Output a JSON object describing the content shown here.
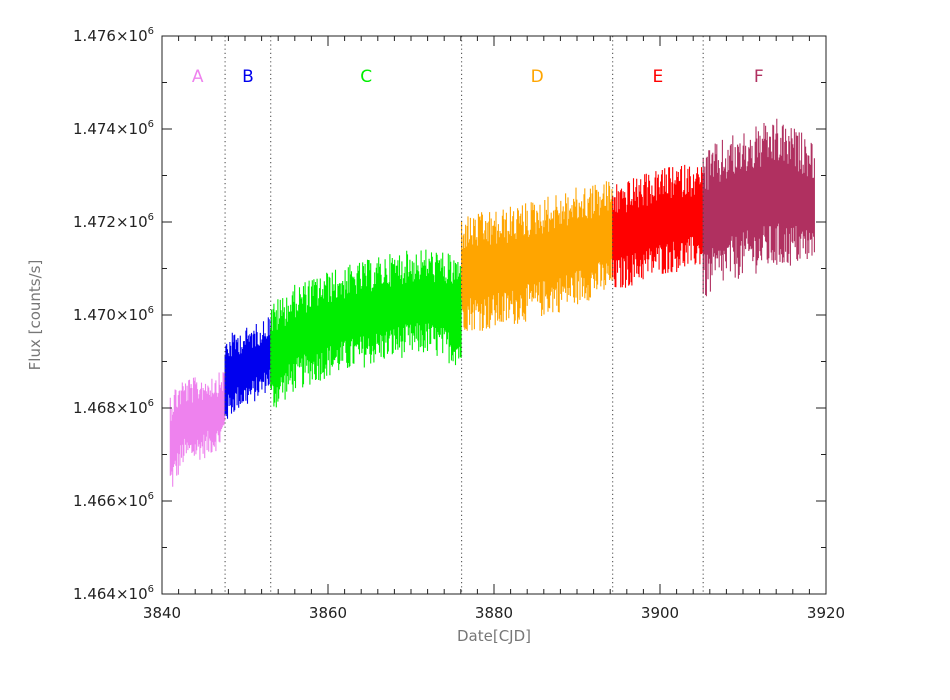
{
  "chart_data": {
    "type": "area",
    "title": "",
    "xlabel": "Date[CJD]",
    "ylabel": "Flux [counts/s]",
    "xlim": [
      3840,
      3920
    ],
    "ylim": [
      1464000,
      1476000
    ],
    "x_ticks": [
      3840,
      3860,
      3880,
      3900,
      3920
    ],
    "x_tick_labels": [
      "3840",
      "3860",
      "3880",
      "3900",
      "3920"
    ],
    "y_ticks": [
      1464000,
      1466000,
      1468000,
      1470000,
      1472000,
      1474000,
      1476000
    ],
    "y_tick_labels": [
      {
        "mantissa": "1.464×10",
        "exponent": "6"
      },
      {
        "mantissa": "1.466×10",
        "exponent": "6"
      },
      {
        "mantissa": "1.468×10",
        "exponent": "6"
      },
      {
        "mantissa": "1.470×10",
        "exponent": "6"
      },
      {
        "mantissa": "1.472×10",
        "exponent": "6"
      },
      {
        "mantissa": "1.474×10",
        "exponent": "6"
      },
      {
        "mantissa": "1.476×10",
        "exponent": "6"
      }
    ],
    "grid": false,
    "legend": "none",
    "dividers": [
      3847.6,
      3853.1,
      3876.1,
      3894.3,
      3905.2
    ],
    "series": [
      {
        "name": "A",
        "color": "#ee82ee",
        "x": [
          3841.0,
          3842.5,
          3844.0,
          3845.5,
          3847.0,
          3847.6
        ],
        "low": [
          1466000,
          1466700,
          1466800,
          1466900,
          1467100,
          1467400
        ],
        "high": [
          1468500,
          1468700,
          1468700,
          1468800,
          1468800,
          1468900
        ]
      },
      {
        "name": "B",
        "color": "#0000ee",
        "x": [
          3847.6,
          3849.0,
          3850.5,
          3852.0,
          3853.1
        ],
        "low": [
          1467600,
          1467900,
          1468000,
          1468200,
          1468400
        ],
        "high": [
          1469600,
          1469700,
          1469800,
          1469900,
          1470100
        ]
      },
      {
        "name": "C",
        "color": "#00ee00",
        "x": [
          3853.1,
          3856.0,
          3860.0,
          3864.0,
          3868.0,
          3872.0,
          3876.1
        ],
        "low": [
          1467800,
          1468300,
          1468600,
          1468800,
          1469000,
          1469100,
          1468800
        ],
        "high": [
          1470300,
          1470700,
          1471000,
          1471200,
          1471400,
          1471500,
          1471300
        ]
      },
      {
        "name": "D",
        "color": "#ffa500",
        "x": [
          3876.1,
          3880.0,
          3884.0,
          3888.0,
          3892.0,
          3894.3
        ],
        "low": [
          1469600,
          1469600,
          1469800,
          1470000,
          1470300,
          1470400
        ],
        "high": [
          1472200,
          1472300,
          1472500,
          1472700,
          1472900,
          1473000
        ]
      },
      {
        "name": "E",
        "color": "#ff0000",
        "x": [
          3894.3,
          3897.0,
          3900.0,
          3903.0,
          3905.2
        ],
        "low": [
          1470400,
          1470600,
          1470800,
          1470900,
          1471000
        ],
        "high": [
          1472900,
          1473000,
          1473200,
          1473300,
          1473300
        ]
      },
      {
        "name": "F",
        "color": "#b03060",
        "x": [
          3905.2,
          3908.0,
          3911.0,
          3914.0,
          3917.0,
          3918.6
        ],
        "low": [
          1470200,
          1470600,
          1470800,
          1470900,
          1471000,
          1471000
        ],
        "high": [
          1473600,
          1473900,
          1474100,
          1474300,
          1474000,
          1473800
        ]
      }
    ]
  }
}
